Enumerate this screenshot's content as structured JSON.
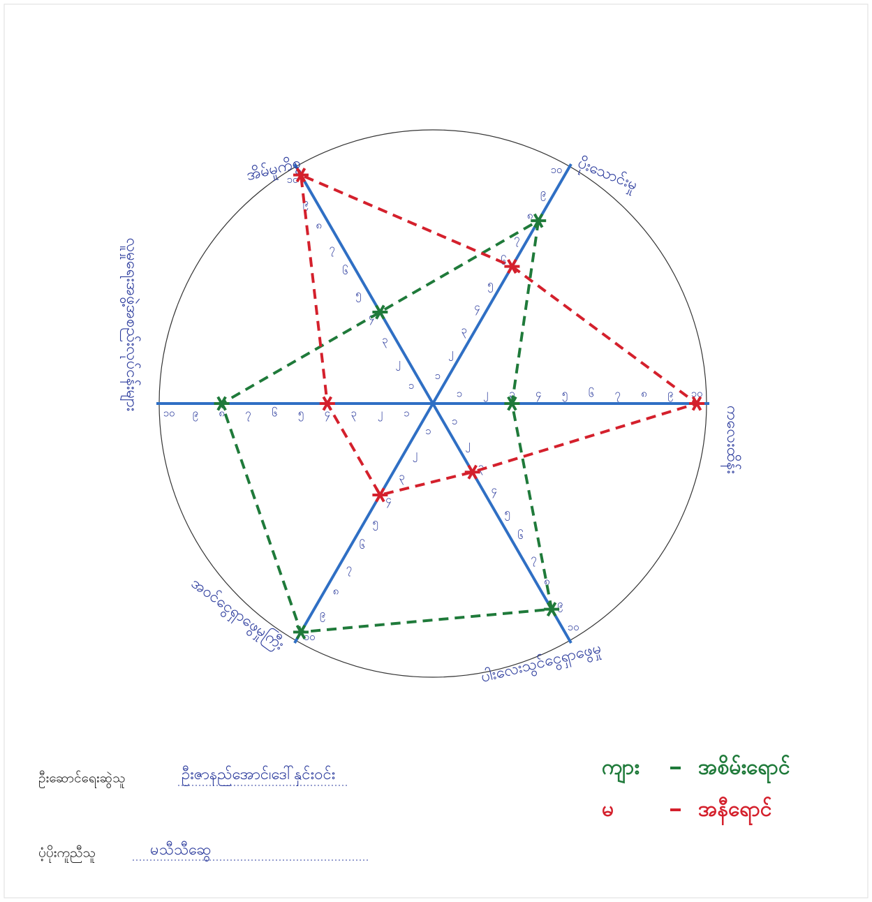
{
  "chart_data": {
    "type": "radar",
    "categories": [
      "ပိုးသောင်းမှု",
      "ကလေးထိန်း",
      "ပါးလေးသွင်ငွေရှာဖွေမှု",
      "အဝင်ငွေရှာဖွေမှုကြီး",
      "လူမှုရေးအဖွဲ့အစည်းလုပ်ငန်းများ",
      "အိမ်မှုကိစ္စ"
    ],
    "rlim": [
      0,
      10
    ],
    "rticks": [
      {
        "value": 1,
        "label": "၁"
      },
      {
        "value": 2,
        "label": "၂"
      },
      {
        "value": 3,
        "label": "၃"
      },
      {
        "value": 4,
        "label": "၄"
      },
      {
        "value": 5,
        "label": "၅"
      },
      {
        "value": 6,
        "label": "၆"
      },
      {
        "value": 7,
        "label": "၇"
      },
      {
        "value": 8,
        "label": "၈"
      },
      {
        "value": 9,
        "label": "၉"
      },
      {
        "value": 10,
        "label": "၁၀"
      }
    ],
    "axis_color": "#2f6fc4",
    "series": [
      {
        "name": "ကျား",
        "color_name": "အစိမ်းရောင်",
        "color": "#1f7a3a",
        "values": [
          8,
          3,
          9,
          10,
          8,
          4
        ]
      },
      {
        "name": "မ",
        "color_name": "အနီရောင်",
        "color": "#d4202c",
        "values": [
          6,
          10,
          3,
          4,
          4,
          10
        ]
      }
    ],
    "footer": [
      {
        "label": "ဦးဆောင်ရေးဆွဲသူ",
        "value": "ဦးဇာနည်အောင်၊ဒေါ်နှင်းဝင်း"
      },
      {
        "label": "ပံ့ပိုးကူညီသူ",
        "value": "မသီသီဆွေ"
      }
    ]
  }
}
